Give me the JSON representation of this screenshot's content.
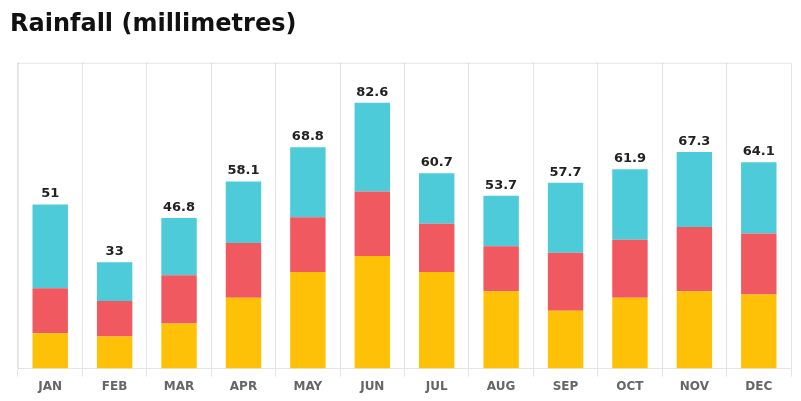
{
  "chart_data": {
    "type": "bar",
    "title": "Rainfall (millimetres)",
    "categories": [
      "JAN",
      "FEB",
      "MAR",
      "APR",
      "MAY",
      "JUN",
      "JUL",
      "AUG",
      "SEP",
      "OCT",
      "NOV",
      "DEC"
    ],
    "stacked": true,
    "series": [
      {
        "color": "#FFC107",
        "values": [
          11,
          10,
          14,
          22,
          30,
          35,
          30,
          24,
          18,
          22,
          24,
          23
        ]
      },
      {
        "color": "#F05960",
        "values": [
          14,
          11,
          15,
          17,
          17,
          20,
          15,
          14,
          18,
          18,
          20,
          19
        ]
      },
      {
        "color": "#4DCBD8",
        "values": [
          26,
          12,
          17.8,
          19.1,
          21.8,
          27.6,
          15.7,
          15.7,
          21.7,
          21.9,
          23.3,
          22.1
        ]
      }
    ],
    "totals": [
      51,
      33,
      46.8,
      58.1,
      68.8,
      82.6,
      60.7,
      53.7,
      57.7,
      61.9,
      67.3,
      64.1
    ],
    "ylim": [
      0,
      95
    ],
    "grid": "x",
    "tick_labels": "x"
  }
}
